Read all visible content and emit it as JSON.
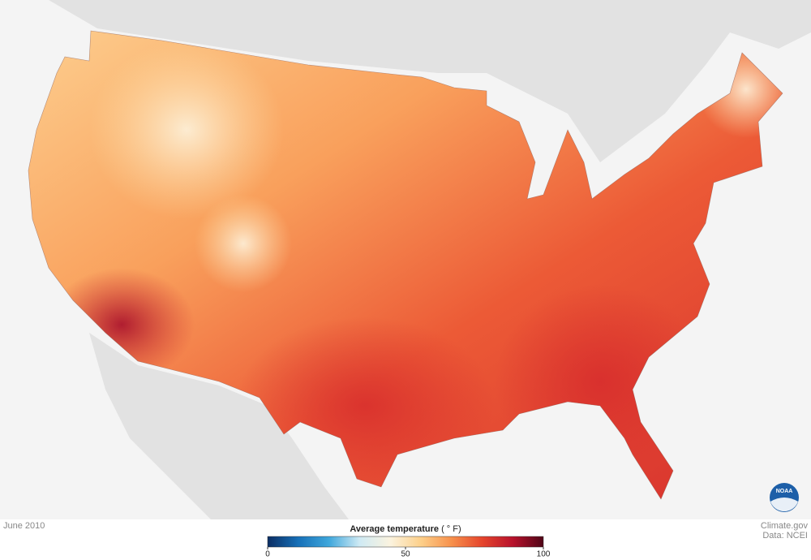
{
  "date": "June 2010",
  "legend": {
    "title": "Average temperature",
    "unit": "( ° F)",
    "range": [
      0,
      100
    ],
    "ticks": [
      0,
      50,
      100
    ],
    "colors": [
      "#0b2d63",
      "#1670b8",
      "#3fa7dc",
      "#cfeaf4",
      "#fbf3df",
      "#fdd08a",
      "#f7914c",
      "#e5452c",
      "#b8122c",
      "#4f0517"
    ]
  },
  "credits": [
    "Climate.gov",
    "Data: NCEI"
  ],
  "logo": "NOAA"
}
